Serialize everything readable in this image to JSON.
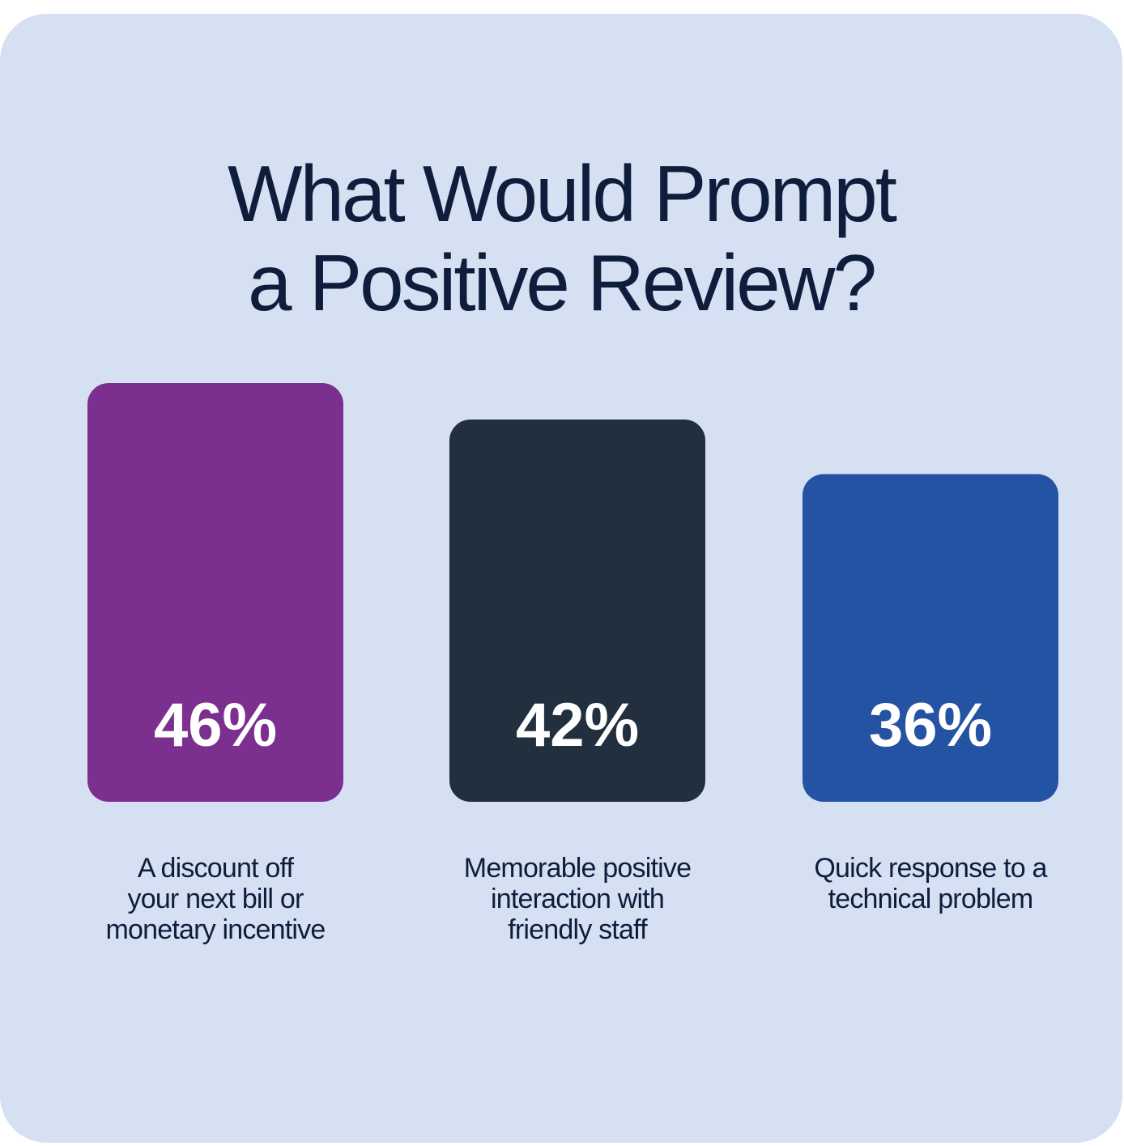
{
  "title": {
    "line1": "What Would Prompt",
    "line2": "a Positive Review?"
  },
  "colors": {
    "background": "#d5e1f2",
    "title_text": "#0f1d3d",
    "value_text": "#ffffff"
  },
  "chart_data": {
    "type": "bar",
    "title": "What Would Prompt a Positive Review?",
    "categories": [
      [
        "A discount off",
        "your next bill or",
        "monetary incentive"
      ],
      [
        "Memorable positive",
        "interaction with",
        "friendly staff"
      ],
      [
        "Quick response to a",
        "technical problem"
      ]
    ],
    "values": [
      46,
      42,
      36
    ],
    "value_labels": [
      "46%",
      "42%",
      "36%"
    ],
    "unit": "%",
    "bar_colors": [
      "#7b2f8e",
      "#222f3f",
      "#2553a4"
    ],
    "grid": false,
    "legend": "none"
  }
}
